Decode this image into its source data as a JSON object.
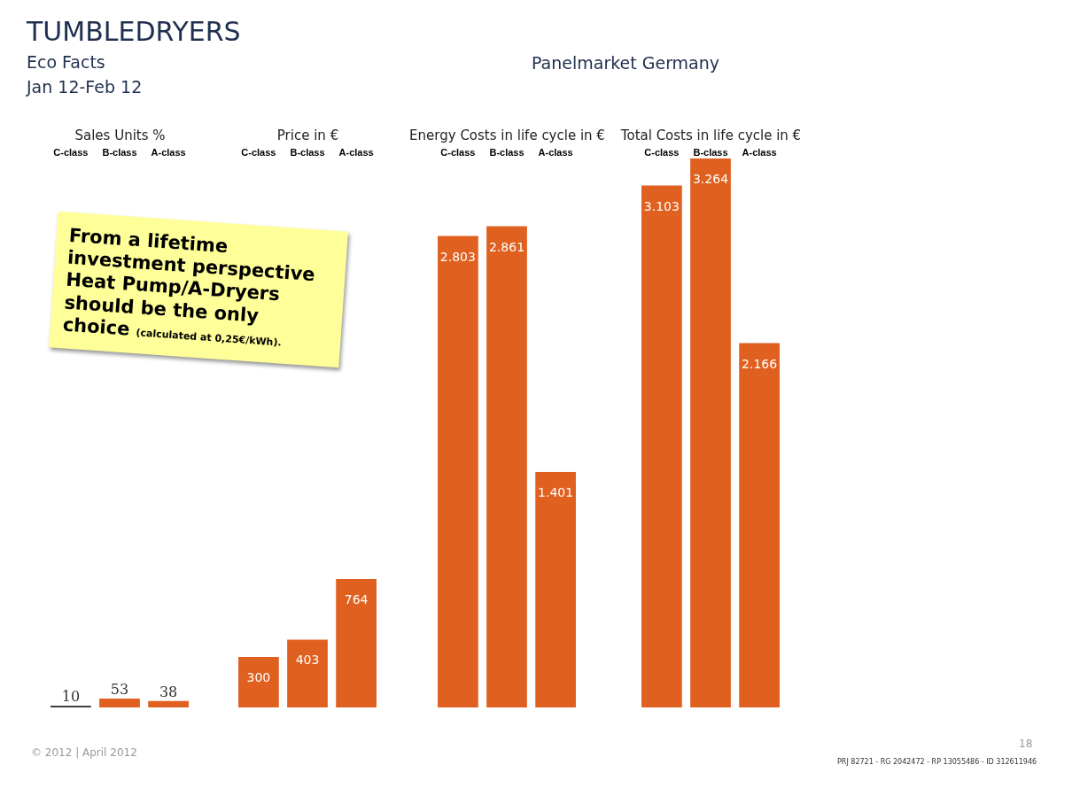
{
  "chart_data": [
    {
      "type": "bar",
      "title": "TUMBLEDRYERS",
      "subtitle": "Eco Facts",
      "annotations": [
        "Jan 12-Feb 12",
        "Panelmarket Germany",
        "From a lifetime investment perspective Heat Pump/A-Dryers should be the only choice $_{(calculated at 0,25€/kWh).}$",
        "© 2012 | April 2012"
      ],
      "xlabel": "Sales Units %",
      "categories": [
        "C-class",
        "B-class",
        "A-class"
      ],
      "values": [
        10,
        53,
        38
      ],
      "value_labels": [
        "10",
        "53",
        "38"
      ],
      "colors": [
        "#404040",
        "#e0601f",
        "#e0601f"
      ]
    },
    {
      "type": "bar",
      "xlabel": "Price in €",
      "categories": [
        "C-class",
        "B-class",
        "A-class"
      ],
      "values": [
        300,
        403,
        764
      ],
      "value_labels": [
        "300",
        "403",
        "764"
      ],
      "colors": [
        "#e0601f",
        "#e0601f",
        "#e0601f"
      ]
    },
    {
      "type": "bar",
      "xlabel": "Energy Costs in life cycle  in €",
      "categories": [
        "C-class",
        "B-class",
        "A-class"
      ],
      "values": [
        2803,
        2861,
        1401
      ],
      "value_labels": [
        "2.803",
        "2.861",
        "1.401"
      ],
      "colors": [
        "#e0601f",
        "#e0601f",
        "#e0601f"
      ]
    },
    {
      "type": "bar",
      "xlabel": "Total Costs in life cycle in  €",
      "annotations": [
        "18",
        "PRJ 82721 - RG 2042472 - RP 13055486 - ID 312611946"
      ],
      "categories": [
        "C-class",
        "B-class",
        "A-class"
      ],
      "values": [
        3103,
        3264,
        2166
      ],
      "value_labels": [
        "3.103",
        "3.264",
        "2.166"
      ],
      "colors": [
        "#e0601f",
        "#e0601f",
        "#e0601f"
      ]
    }
  ]
}
